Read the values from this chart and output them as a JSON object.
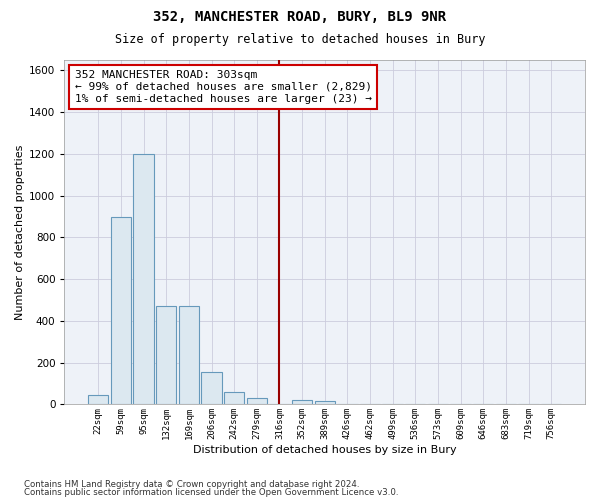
{
  "title": "352, MANCHESTER ROAD, BURY, BL9 9NR",
  "subtitle": "Size of property relative to detached houses in Bury",
  "xlabel": "Distribution of detached houses by size in Bury",
  "ylabel": "Number of detached properties",
  "bar_color": "#dce8f0",
  "bar_edge_color": "#6699bb",
  "grid_color": "#ccccdd",
  "background_color": "#eef2f8",
  "vline_color": "#990000",
  "annotation_box_color": "#cc0000",
  "annotation_text": "352 MANCHESTER ROAD: 303sqm\n← 99% of detached houses are smaller (2,829)\n1% of semi-detached houses are larger (23) →",
  "categories": [
    "22sqm",
    "59sqm",
    "95sqm",
    "132sqm",
    "169sqm",
    "206sqm",
    "242sqm",
    "279sqm",
    "316sqm",
    "352sqm",
    "389sqm",
    "426sqm",
    "462sqm",
    "499sqm",
    "536sqm",
    "573sqm",
    "609sqm",
    "646sqm",
    "683sqm",
    "719sqm",
    "756sqm"
  ],
  "bar_heights": [
    45,
    900,
    1200,
    470,
    470,
    155,
    60,
    30,
    0,
    20,
    15,
    0,
    0,
    0,
    0,
    0,
    0,
    0,
    0,
    0,
    0
  ],
  "ylim": [
    0,
    1650
  ],
  "yticks": [
    0,
    200,
    400,
    600,
    800,
    1000,
    1200,
    1400,
    1600
  ],
  "footer1": "Contains HM Land Registry data © Crown copyright and database right 2024.",
  "footer2": "Contains public sector information licensed under the Open Government Licence v3.0."
}
